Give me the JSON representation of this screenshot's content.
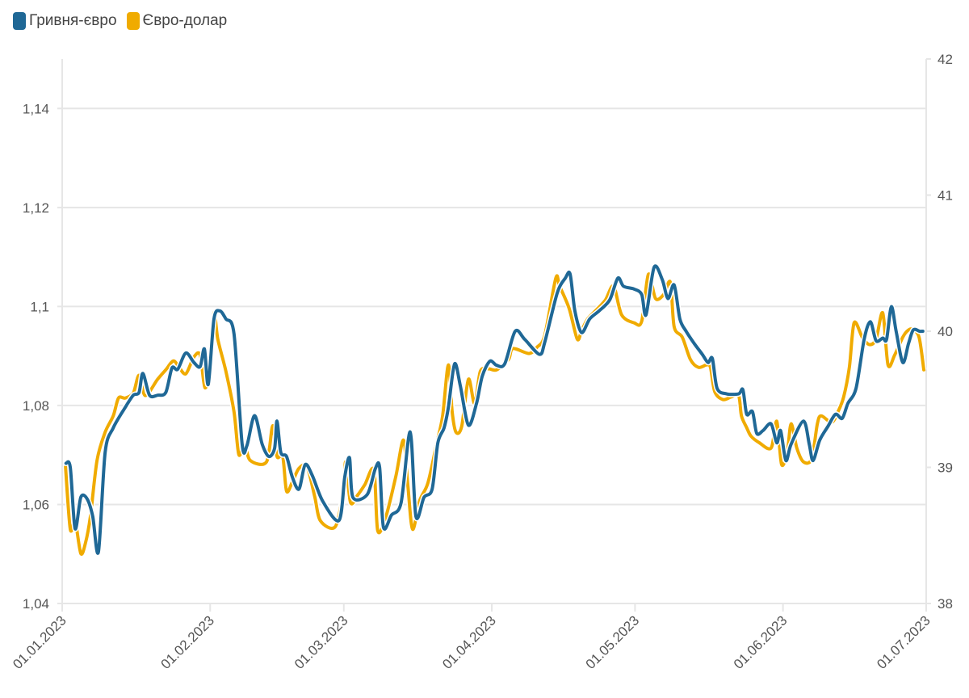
{
  "legend": [
    {
      "label": "Гривня-євро",
      "color": "#1f6896"
    },
    {
      "label": "Євро-долар",
      "color": "#f0ab00"
    }
  ],
  "chart_data": {
    "type": "line",
    "title": "",
    "x_origin": "01.01.2023",
    "x_unit": "days",
    "xlim": [
      0,
      181
    ],
    "x_ticks": [
      {
        "day": 0,
        "label": "01.01.2023"
      },
      {
        "day": 31,
        "label": "01.02.2023"
      },
      {
        "day": 59,
        "label": "01.03.2023"
      },
      {
        "day": 90,
        "label": "01.04.2023"
      },
      {
        "day": 120,
        "label": "01.05.2023"
      },
      {
        "day": 151,
        "label": "01.06.2023"
      },
      {
        "day": 181,
        "label": "01.07.2023"
      }
    ],
    "y_left": {
      "range": [
        1.04,
        1.15
      ],
      "ticks": [
        {
          "v": 1.04,
          "label": "1,04"
        },
        {
          "v": 1.06,
          "label": "1,06"
        },
        {
          "v": 1.08,
          "label": "1,08"
        },
        {
          "v": 1.1,
          "label": "1,1"
        },
        {
          "v": 1.12,
          "label": "1,12"
        },
        {
          "v": 1.14,
          "label": "1,14"
        }
      ]
    },
    "y_right": {
      "range": [
        38,
        42
      ],
      "ticks": [
        {
          "v": 38,
          "label": "38"
        },
        {
          "v": 39,
          "label": "39"
        },
        {
          "v": 40,
          "label": "40"
        },
        {
          "v": 41,
          "label": "41"
        },
        {
          "v": 42,
          "label": "42"
        }
      ]
    },
    "grid": true,
    "legend_position": "top-left",
    "series": [
      {
        "name": "Євро-долар",
        "axis": "left",
        "color": "#f0ab00",
        "x": [
          0.7,
          1.7,
          2.7,
          3.9,
          4.9,
          5.9,
          7.3,
          9.0,
          10.7,
          11.8,
          13.2,
          14.9,
          16.1,
          17.4,
          20.0,
          21.7,
          23.3,
          24.5,
          25.9,
          27.6,
          28.9,
          29.9,
          31.0,
          31.8,
          32.6,
          34.3,
          36.0,
          37.0,
          38.2,
          39.4,
          42.8,
          44.1,
          45.0,
          46.2,
          47.0,
          48.2,
          49.6,
          51.3,
          52.9,
          54.1,
          57.2,
          58.9,
          59.4,
          60.4,
          61.9,
          63.4,
          65.3,
          66.1,
          67.8,
          69.9,
          71.5,
          72.4,
          73.4,
          74.9,
          76.6,
          78.5,
          79.7,
          80.9,
          81.7,
          82.5,
          83.7,
          85.1,
          86.4,
          87.6,
          89.3,
          91.0,
          93.5,
          94.4,
          97.8,
          99.5,
          101.1,
          103.4,
          104.2,
          106.2,
          107.9,
          108.8,
          110.1,
          111.8,
          113.8,
          115.5,
          117.2,
          119.8,
          121.4,
          122.8,
          124.3,
          126.0,
          127.4,
          128.2,
          129.9,
          131.6,
          133.3,
          135.0,
          135.8,
          136.7,
          138.4,
          140.1,
          141.7,
          142.3,
          143.4,
          144.3,
          146.0,
          148.5,
          149.7,
          150.7,
          151.9,
          152.7,
          153.9,
          155.3,
          157.0,
          158.2,
          159.0,
          161.2,
          162.5,
          163.7,
          164.9,
          165.9,
          167.6,
          169.1,
          170.5,
          171.9,
          173.0,
          174.4,
          176.1,
          177.1,
          178.1,
          179.5,
          180.5
        ],
        "y": [
          1.0676,
          1.055,
          1.0567,
          1.0501,
          1.0523,
          1.0575,
          1.0689,
          1.0746,
          1.0779,
          1.0815,
          1.0815,
          1.0825,
          1.0861,
          1.082,
          1.0853,
          1.0872,
          1.089,
          1.0877,
          1.0864,
          1.0898,
          1.0902,
          1.0836,
          1.0877,
          1.0987,
          1.0934,
          1.0869,
          1.0787,
          1.0701,
          1.0722,
          1.0689,
          1.0686,
          1.0759,
          1.0697,
          1.0697,
          1.0627,
          1.0645,
          1.0673,
          1.0676,
          1.0616,
          1.0567,
          1.0555,
          1.0627,
          1.0686,
          1.0604,
          1.0619,
          1.064,
          1.067,
          1.0547,
          1.0575,
          1.0657,
          1.073,
          1.064,
          1.055,
          1.0608,
          1.0643,
          1.0725,
          1.0779,
          1.0882,
          1.0787,
          1.0746,
          1.0758,
          1.0853,
          1.0804,
          1.0869,
          1.0874,
          1.0872,
          1.0893,
          1.0915,
          1.0905,
          1.0918,
          1.0942,
          1.1057,
          1.1041,
          1.0996,
          1.0934,
          1.0951,
          1.0975,
          1.0992,
          1.1013,
          1.1041,
          1.0983,
          1.0967,
          1.097,
          1.1065,
          1.1016,
          1.1024,
          1.1049,
          1.0959,
          1.0938,
          1.0893,
          1.0877,
          1.0882,
          1.0877,
          1.0828,
          1.0812,
          1.0817,
          1.082,
          1.0779,
          1.0755,
          1.0738,
          1.0725,
          1.0714,
          1.0768,
          1.0681,
          1.0706,
          1.0763,
          1.0714,
          1.0686,
          1.0692,
          1.0763,
          1.0779,
          1.0766,
          1.0787,
          1.0817,
          1.0877,
          1.0967,
          1.0938,
          1.0923,
          1.0934,
          1.0987,
          1.0882,
          1.0902,
          1.0938,
          1.0951,
          1.0954,
          1.0938,
          1.0872
        ]
      },
      {
        "name": "Гривня-євро",
        "axis": "right",
        "color": "#1f6896",
        "x": [
          0.8,
          1.7,
          2.7,
          3.9,
          5.2,
          6.4,
          7.6,
          9.0,
          10.7,
          13.2,
          14.9,
          16.1,
          16.9,
          18.3,
          20.0,
          21.7,
          23.0,
          24.2,
          25.9,
          27.6,
          28.9,
          29.8,
          30.6,
          31.8,
          33.0,
          34.3,
          36.0,
          37.7,
          38.7,
          40.3,
          41.9,
          43.3,
          44.5,
          45.0,
          45.8,
          47.0,
          48.2,
          49.6,
          50.9,
          52.4,
          54.6,
          58.0,
          59.2,
          60.2,
          60.9,
          63.9,
          65.6,
          66.5,
          67.3,
          69.0,
          71.0,
          72.9,
          74.1,
          75.8,
          77.5,
          78.7,
          80.0,
          80.9,
          82.2,
          83.4,
          85.1,
          86.8,
          88.0,
          89.6,
          91.0,
          92.7,
          94.9,
          96.9,
          100.0,
          101.1,
          103.7,
          105.4,
          106.4,
          107.4,
          108.8,
          110.5,
          112.5,
          114.7,
          116.4,
          117.6,
          119.8,
          121.4,
          122.3,
          124.0,
          125.7,
          126.9,
          128.2,
          129.4,
          130.7,
          132.4,
          134.1,
          135.3,
          136.2,
          137.2,
          139.2,
          141.7,
          142.6,
          143.4,
          144.6,
          145.5,
          146.8,
          148.5,
          149.7,
          150.5,
          151.6,
          152.7,
          155.3,
          156.5,
          157.3,
          158.7,
          160.4,
          162.0,
          163.4,
          164.6,
          166.3,
          168.0,
          169.3,
          170.5,
          171.9,
          172.7,
          173.7,
          174.7,
          176.1,
          177.3,
          178.3,
          179.6,
          180.3
        ],
        "y": [
          39.03,
          39.0,
          38.55,
          38.78,
          38.77,
          38.64,
          38.38,
          39.11,
          39.29,
          39.44,
          39.53,
          39.55,
          39.69,
          39.53,
          39.53,
          39.55,
          39.73,
          39.72,
          39.84,
          39.77,
          39.74,
          39.87,
          39.61,
          40.09,
          40.15,
          40.09,
          39.98,
          39.17,
          39.16,
          39.38,
          39.17,
          39.08,
          39.14,
          39.34,
          39.11,
          39.08,
          38.93,
          38.84,
          39.02,
          38.94,
          38.75,
          38.61,
          38.93,
          39.07,
          38.78,
          38.8,
          38.99,
          39.0,
          38.56,
          38.65,
          38.74,
          39.26,
          38.64,
          38.78,
          38.84,
          39.18,
          39.29,
          39.44,
          39.76,
          39.6,
          39.31,
          39.47,
          39.67,
          39.78,
          39.75,
          39.76,
          40.0,
          39.94,
          39.83,
          39.92,
          40.28,
          40.39,
          40.42,
          40.15,
          39.99,
          40.09,
          40.15,
          40.23,
          40.39,
          40.33,
          40.31,
          40.27,
          40.12,
          40.47,
          40.38,
          40.24,
          40.34,
          40.09,
          40.0,
          39.91,
          39.83,
          39.77,
          39.8,
          39.58,
          39.54,
          39.54,
          39.57,
          39.39,
          39.41,
          39.25,
          39.27,
          39.32,
          39.18,
          39.27,
          39.05,
          39.17,
          39.34,
          39.17,
          39.05,
          39.2,
          39.3,
          39.39,
          39.36,
          39.47,
          39.58,
          39.94,
          40.07,
          39.93,
          39.95,
          39.94,
          40.18,
          40.0,
          39.77,
          39.91,
          40.01,
          40.0,
          40.0
        ]
      }
    ]
  }
}
